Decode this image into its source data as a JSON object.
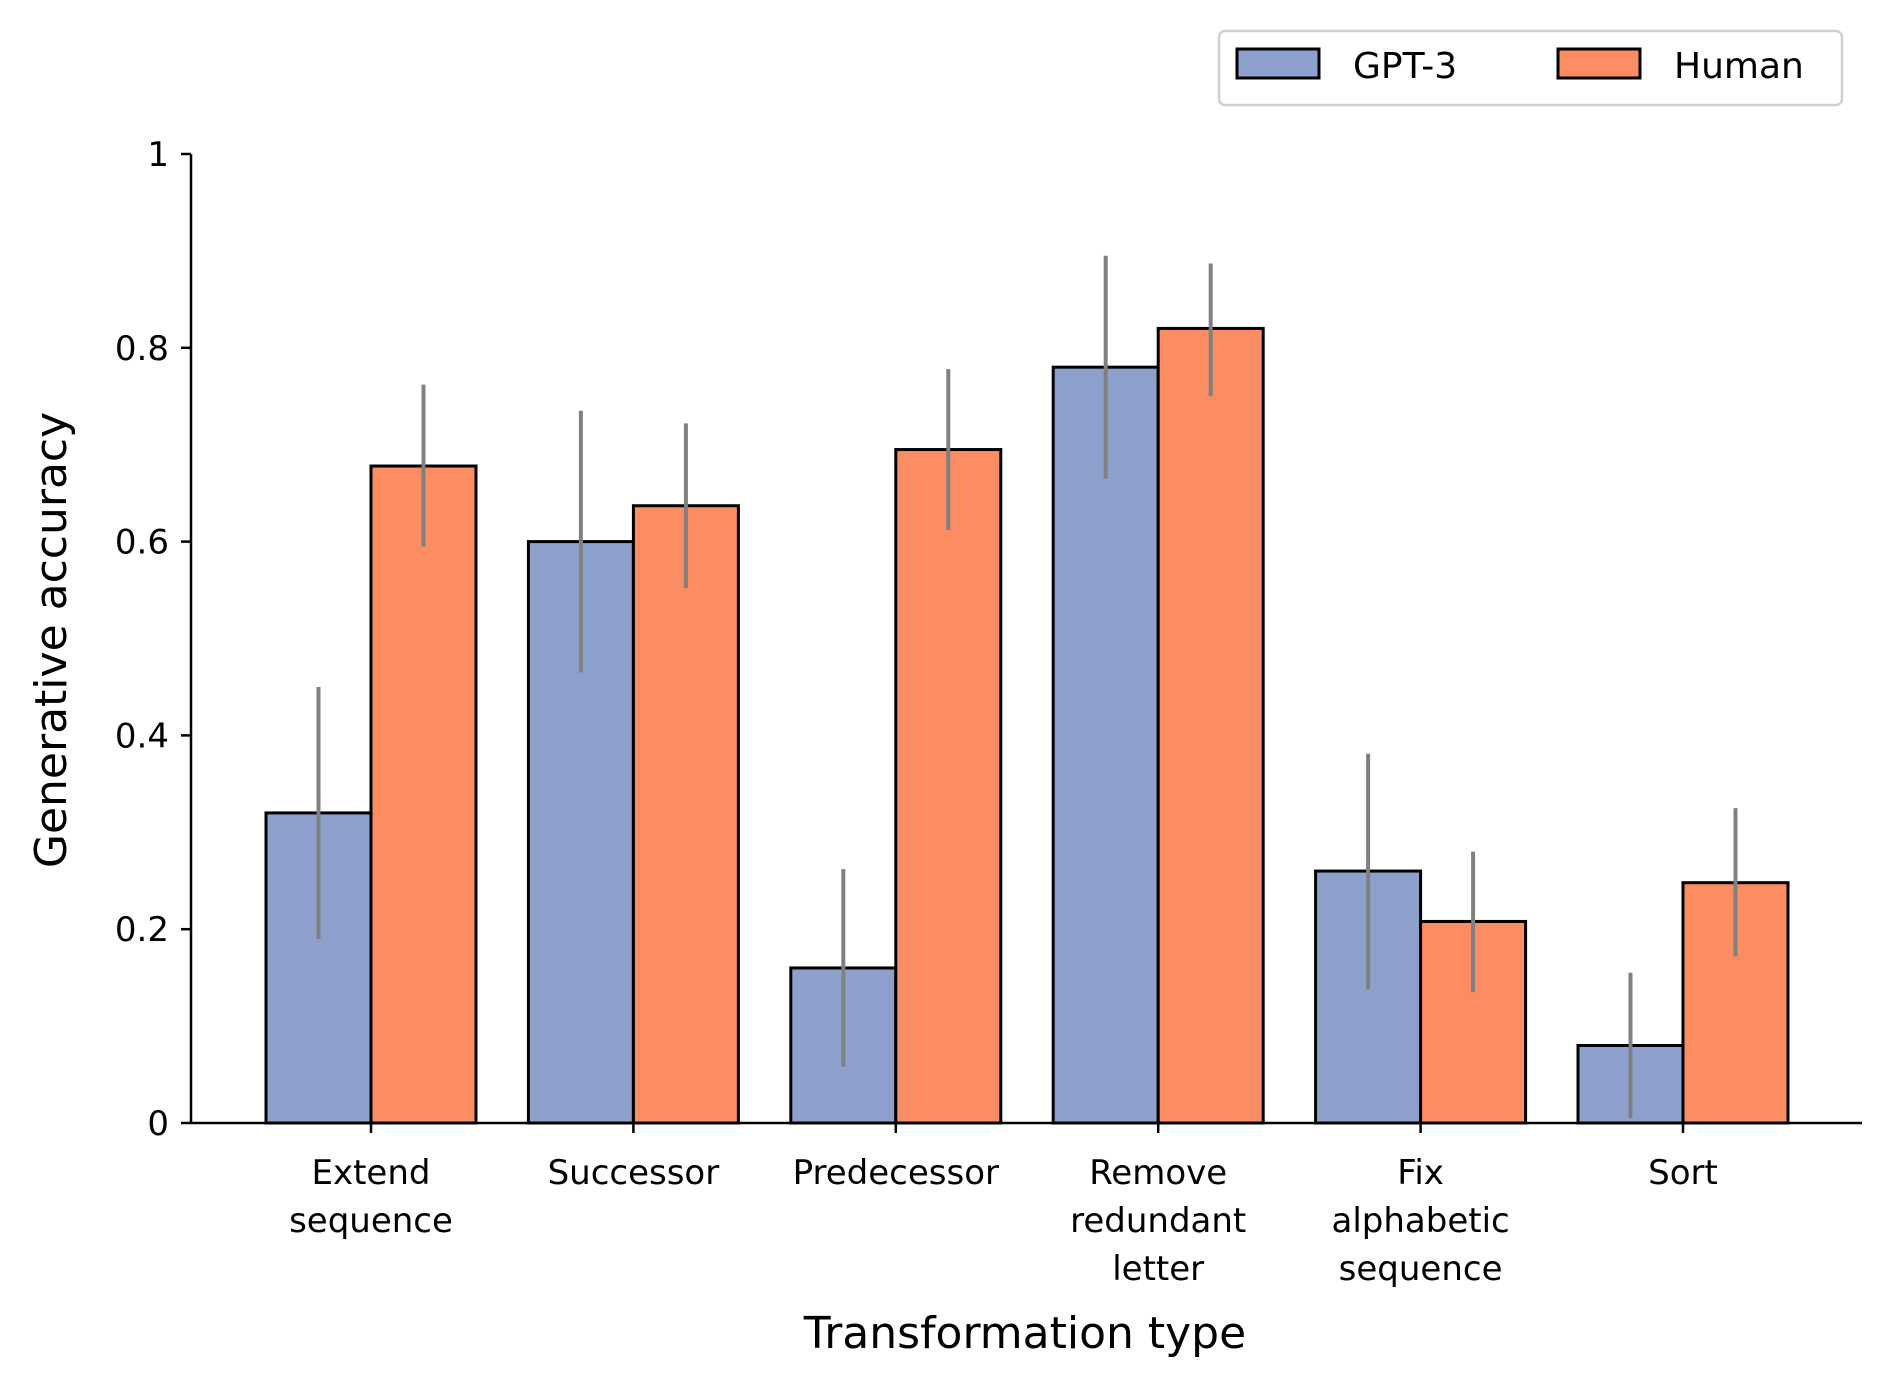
{
  "chart_data": {
    "type": "bar",
    "xlabel": "Transformation type",
    "ylabel": "Generative accuracy",
    "ylim": [
      0,
      1
    ],
    "yticks": [
      0,
      0.2,
      0.4,
      0.6,
      0.8,
      1
    ],
    "ytick_labels": [
      "0",
      "0.2",
      "0.4",
      "0.6",
      "0.8",
      "1"
    ],
    "categories": [
      [
        "Extend",
        "sequence"
      ],
      [
        "Successor"
      ],
      [
        "Predecessor"
      ],
      [
        "Remove",
        "redundant",
        "letter"
      ],
      [
        "Fix",
        "alphabetic",
        "sequence"
      ],
      [
        "Sort"
      ]
    ],
    "series": [
      {
        "name": "GPT-3",
        "color": "#8da0cb",
        "values": [
          0.32,
          0.6,
          0.16,
          0.78,
          0.26,
          0.08
        ],
        "error_low": [
          0.19,
          0.465,
          0.058,
          0.665,
          0.138,
          0.005
        ],
        "error_high": [
          0.45,
          0.735,
          0.262,
          0.895,
          0.381,
          0.155
        ]
      },
      {
        "name": "Human",
        "color": "#fc8d62",
        "values": [
          0.678,
          0.637,
          0.695,
          0.82,
          0.208,
          0.248
        ],
        "error_low": [
          0.595,
          0.552,
          0.612,
          0.75,
          0.135,
          0.172
        ],
        "error_high": [
          0.762,
          0.722,
          0.778,
          0.887,
          0.28,
          0.325
        ]
      }
    ],
    "error_bar_color": "#808080",
    "legend": {
      "placement": "top-right",
      "ncol": 2
    },
    "grid": false
  }
}
